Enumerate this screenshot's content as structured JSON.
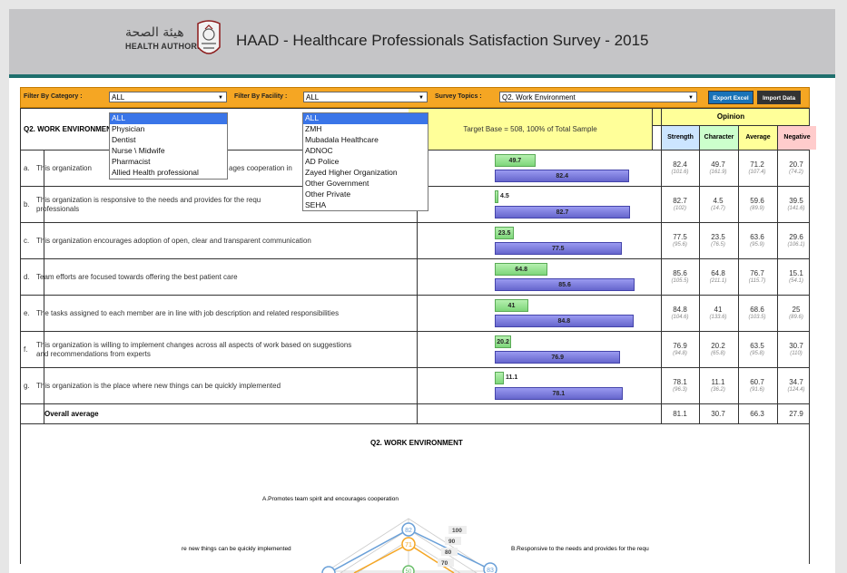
{
  "header": {
    "title": "HAAD - Healthcare Professionals Satisfaction Survey - 2015",
    "logo_arabic": "هيئة الصحة",
    "logo_english": "HEALTH AUTHORITY"
  },
  "filters": {
    "category_label": "Filter By Category :",
    "category_value": "ALL",
    "facility_label": "Filter By Facility :",
    "facility_value": "ALL",
    "topics_label": "Survey Topics :",
    "topics_value": "Q2. Work Environment",
    "export_button": "Export Excel",
    "import_button": "Import Data"
  },
  "category_dropdown": [
    "ALL",
    "Physician",
    "Dentist",
    "Nurse \\ Midwife",
    "Pharmacist",
    "Allied Health professional"
  ],
  "facility_dropdown": [
    "ALL",
    "ZMH",
    "Mubadala Healthcare",
    "ADNOC",
    "AD Police",
    "Zayed Higher Organization",
    "Other Government",
    "Other Private",
    "SEHA"
  ],
  "table": {
    "question_title": "Q2. WORK ENVIRONMENT",
    "target_base": "Target Base = 508, 100% of Total Sample",
    "opinion_header": "Opinion",
    "columns": [
      "Strength",
      "Character",
      "Average",
      "Negative"
    ],
    "overall_label": "Overall average",
    "overall_values": [
      "81.1",
      "30.7",
      "66.3",
      "27.9"
    ]
  },
  "rows": [
    {
      "letter": "a.",
      "text": "This organization promotes team spirit and encourages cooperation in the workplace",
      "visible_text": "This organization",
      "visible_text2": "ages cooperation in",
      "character_bar": 49.7,
      "strength_bar": 82.4,
      "strength": "82.4",
      "strength_sub": "(101.6)",
      "character": "49.7",
      "character_sub": "(161.9)",
      "average": "71.2",
      "average_sub": "(107.4)",
      "negative": "20.7",
      "negative_sub": "(74.2)"
    },
    {
      "letter": "b.",
      "text": "This organization is responsive to the needs and provides for the requ",
      "text2": "professionals",
      "character_bar": 4.5,
      "strength_bar": 82.7,
      "strength": "82.7",
      "strength_sub": "(102)",
      "character": "4.5",
      "character_sub": "(14.7)",
      "average": "59.6",
      "average_sub": "(89.9)",
      "negative": "39.5",
      "negative_sub": "(141.6)"
    },
    {
      "letter": "c.",
      "text": "This organization encourages adoption of open, clear and transparent communication",
      "character_bar": 23.5,
      "strength_bar": 77.5,
      "strength": "77.5",
      "strength_sub": "(95.6)",
      "character": "23.5",
      "character_sub": "(76.5)",
      "average": "63.6",
      "average_sub": "(95.9)",
      "negative": "29.6",
      "negative_sub": "(106.1)"
    },
    {
      "letter": "d.",
      "text": "Team efforts are focused towards offering the best patient care",
      "character_bar": 64.8,
      "strength_bar": 85.6,
      "strength": "85.6",
      "strength_sub": "(105.5)",
      "character": "64.8",
      "character_sub": "(211.1)",
      "average": "76.7",
      "average_sub": "(115.7)",
      "negative": "15.1",
      "negative_sub": "(54.1)"
    },
    {
      "letter": "e.",
      "text": "The tasks assigned to each member are in line with job description and related responsibilities",
      "character_bar": 41,
      "strength_bar": 84.8,
      "strength": "84.8",
      "strength_sub": "(104.6)",
      "character": "41",
      "character_sub": "(133.6)",
      "average": "68.6",
      "average_sub": "(103.5)",
      "negative": "25",
      "negative_sub": "(89.6)"
    },
    {
      "letter": "f.",
      "text": "This organization is willing to implement changes across all aspects of work based on suggestions",
      "text2": "and recommendations from experts",
      "character_bar": 20.2,
      "strength_bar": 76.9,
      "strength": "76.9",
      "strength_sub": "(94.8)",
      "character": "20.2",
      "character_sub": "(65.8)",
      "average": "63.5",
      "average_sub": "(95.8)",
      "negative": "30.7",
      "negative_sub": "(110)"
    },
    {
      "letter": "g.",
      "text": "This organization is the place where new things can be quickly implemented",
      "character_bar": 11.1,
      "strength_bar": 78.1,
      "strength": "78.1",
      "strength_sub": "(96.3)",
      "character": "11.1",
      "character_sub": "(36.2)",
      "average": "60.7",
      "average_sub": "(91.6)",
      "negative": "34.7",
      "negative_sub": "(124.4)"
    }
  ],
  "radar": {
    "title": "Q2. WORK ENVIRONMENT",
    "label_top": "A.Promotes team spirit and encourages cooperation",
    "label_left": "re new things can be quickly implemented",
    "label_right": "B.Responsive to the needs and provides for the requ",
    "scale_labels": [
      "100",
      "90",
      "80",
      "70"
    ],
    "point_labels": [
      "82",
      "71",
      "83",
      "50"
    ]
  },
  "colors": {
    "header_bg": "#c5c5c7",
    "accent": "#1f6f6d",
    "filter_bar": "#f5a623",
    "highlight": "#ffff99",
    "character_bar": "#7ed67a",
    "strength_bar": "#6666cc",
    "strength_header": "#cce5ff",
    "character_header": "#ccffcc",
    "negative_header": "#ffcccc",
    "export_button": "#1a73b8",
    "import_button": "#333333"
  }
}
